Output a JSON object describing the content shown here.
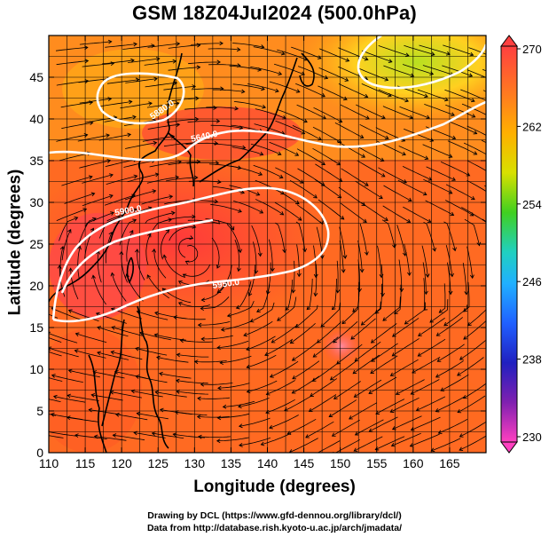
{
  "title": "GSM 18Z04Jul2024 (500.0hPa)",
  "xlabel": "Longitude (degrees)",
  "ylabel": "Latitude  (degrees)",
  "x_ticks": [
    "110",
    "115",
    "120",
    "125",
    "130",
    "135",
    "140",
    "145",
    "150",
    "155",
    "160",
    "165"
  ],
  "y_ticks": [
    "0",
    "5",
    "10",
    "15",
    "20",
    "25",
    "30",
    "35",
    "40",
    "45"
  ],
  "colorbar": {
    "ticks": [
      "270",
      "262",
      "254",
      "246",
      "238",
      "230"
    ],
    "colors": [
      "#ff4040",
      "#ff8c20",
      "#ffd000",
      "#a0e000",
      "#20c040",
      "#20d0c0",
      "#20a0ff",
      "#2040ff",
      "#2020a0",
      "#c020c0",
      "#ff40c0"
    ]
  },
  "contours": [
    "5640.0",
    "5900.0",
    "5950.0",
    "5880.0"
  ],
  "footer": {
    "line1": "Drawing by DCL (https://www.gfd-dennou.org/library/dcl/)",
    "line2": "Data from http://database.rish.kyoto-u.ac.jp/arch/jmadata/"
  },
  "colors": {
    "field_warm": "#ff4a2a",
    "field_mid": "#ff8a1a",
    "field_cool": "#ffb01a",
    "field_green": "#a8e020",
    "contour": "#ffffff",
    "lines": "#000000"
  }
}
